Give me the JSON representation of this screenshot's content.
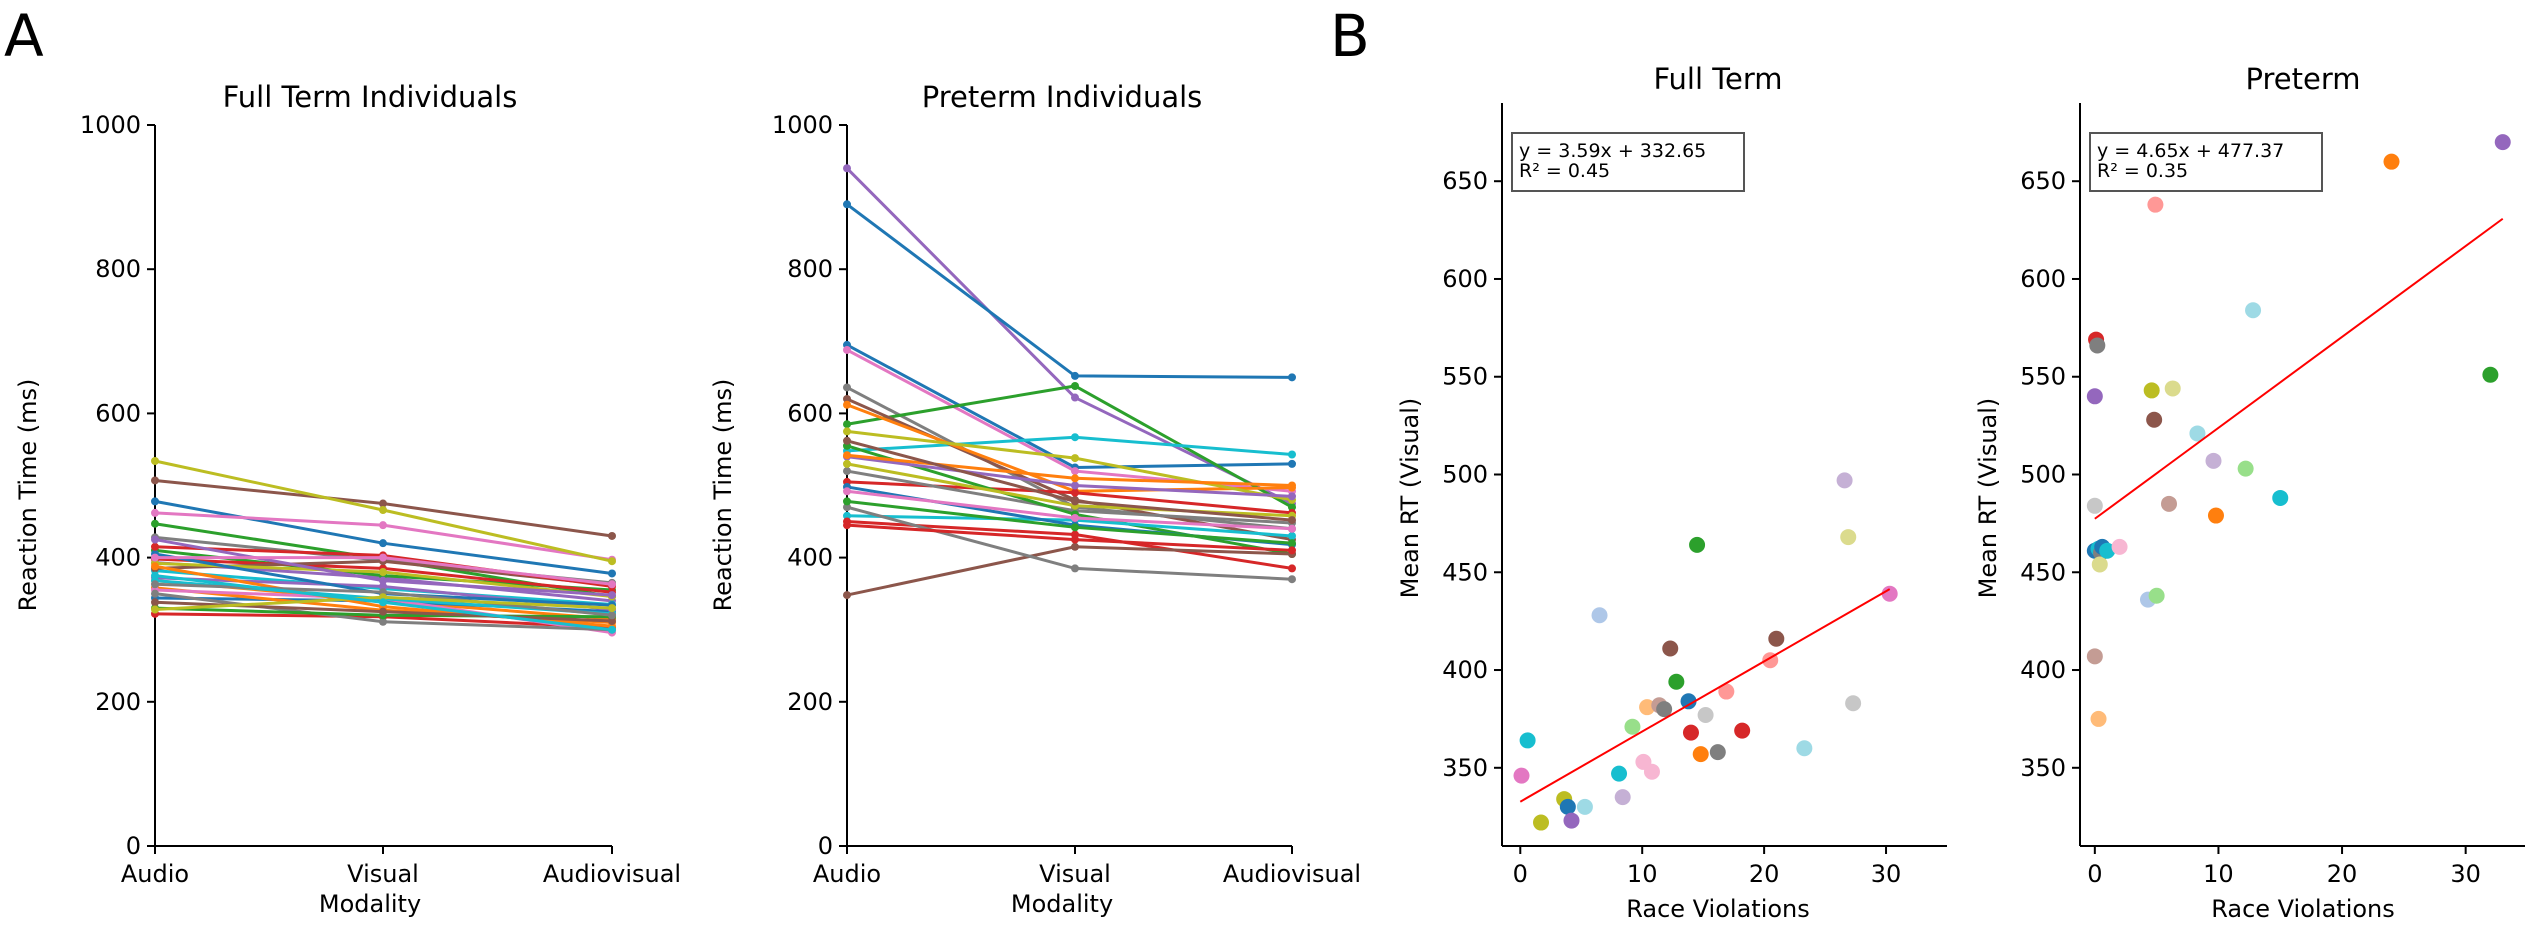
{
  "panel_letters": {
    "a": "A",
    "b": "B"
  },
  "chart_data": [
    {
      "type": "line",
      "title": "Full Term Individuals",
      "xlabel": "Modality",
      "ylabel": "Reaction Time (ms)",
      "categories": [
        "Audio",
        "Visual",
        "Audiovisual"
      ],
      "ylim": [
        0,
        1000
      ],
      "yticks": [
        0,
        200,
        400,
        600,
        800,
        1000
      ],
      "grid": false,
      "series": [
        {
          "color": "#1f77b4",
          "values": [
            478,
            420,
            378
          ]
        },
        {
          "color": "#ff7f0e",
          "values": [
            368,
            340,
            315
          ]
        },
        {
          "color": "#2ca02c",
          "values": [
            447,
            398,
            346
          ]
        },
        {
          "color": "#d62728",
          "values": [
            322,
            318,
            303
          ]
        },
        {
          "color": "#9467bd",
          "values": [
            393,
            372,
            340
          ]
        },
        {
          "color": "#8c564b",
          "values": [
            507,
            475,
            430
          ]
        },
        {
          "color": "#e377c2",
          "values": [
            462,
            445,
            397
          ]
        },
        {
          "color": "#7f7f7f",
          "values": [
            428,
            396,
            365
          ]
        },
        {
          "color": "#bcbd22",
          "values": [
            534,
            466,
            395
          ]
        },
        {
          "color": "#17becf",
          "values": [
            382,
            357,
            335
          ]
        },
        {
          "color": "#1f77b4",
          "values": [
            344,
            340,
            325
          ]
        },
        {
          "color": "#ff7f0e",
          "values": [
            358,
            327,
            310
          ]
        },
        {
          "color": "#2ca02c",
          "values": [
            410,
            375,
            355
          ]
        },
        {
          "color": "#d62728",
          "values": [
            398,
            385,
            352
          ]
        },
        {
          "color": "#9467bd",
          "values": [
            372,
            360,
            328
          ]
        },
        {
          "color": "#8c564b",
          "values": [
            385,
            395,
            362
          ]
        },
        {
          "color": "#e377c2",
          "values": [
            355,
            343,
            296
          ]
        },
        {
          "color": "#7f7f7f",
          "values": [
            350,
            311,
            300
          ]
        },
        {
          "color": "#bcbd22",
          "values": [
            392,
            380,
            346
          ]
        },
        {
          "color": "#17becf",
          "values": [
            368,
            343,
            322
          ]
        },
        {
          "color": "#1f77b4",
          "values": [
            405,
            350,
            334
          ]
        },
        {
          "color": "#ff7f0e",
          "values": [
            388,
            332,
            305
          ]
        },
        {
          "color": "#2ca02c",
          "values": [
            330,
            320,
            318
          ]
        },
        {
          "color": "#d62728",
          "values": [
            415,
            403,
            360
          ]
        },
        {
          "color": "#9467bd",
          "values": [
            425,
            368,
            348
          ]
        },
        {
          "color": "#8c564b",
          "values": [
            338,
            325,
            312
          ]
        },
        {
          "color": "#e377c2",
          "values": [
            400,
            400,
            363
          ]
        },
        {
          "color": "#7f7f7f",
          "values": [
            363,
            352,
            320
          ]
        },
        {
          "color": "#bcbd22",
          "values": [
            328,
            345,
            330
          ]
        },
        {
          "color": "#17becf",
          "values": [
            375,
            338,
            300
          ]
        }
      ]
    },
    {
      "type": "line",
      "title": "Preterm Individuals",
      "xlabel": "Modality",
      "ylabel": "Reaction Time (ms)",
      "categories": [
        "Audio",
        "Visual",
        "Audiovisual"
      ],
      "ylim": [
        0,
        1000
      ],
      "yticks": [
        0,
        200,
        400,
        600,
        800,
        1000
      ],
      "grid": false,
      "series": [
        {
          "color": "#9467bd",
          "values": [
            940,
            622,
            475
          ]
        },
        {
          "color": "#1f77b4",
          "values": [
            890,
            652,
            650
          ]
        },
        {
          "color": "#1f77b4",
          "values": [
            695,
            525,
            530
          ]
        },
        {
          "color": "#e377c2",
          "values": [
            688,
            520,
            492
          ]
        },
        {
          "color": "#7f7f7f",
          "values": [
            636,
            470,
            440
          ]
        },
        {
          "color": "#2ca02c",
          "values": [
            585,
            638,
            470
          ]
        },
        {
          "color": "#17becf",
          "values": [
            548,
            567,
            543
          ]
        },
        {
          "color": "#8c564b",
          "values": [
            620,
            480,
            425
          ]
        },
        {
          "color": "#ff7f0e",
          "values": [
            612,
            492,
            497
          ]
        },
        {
          "color": "#d62728",
          "values": [
            505,
            490,
            462
          ]
        },
        {
          "color": "#bcbd22",
          "values": [
            575,
            538,
            480
          ]
        },
        {
          "color": "#7f7f7f",
          "values": [
            520,
            465,
            448
          ]
        },
        {
          "color": "#2ca02c",
          "values": [
            555,
            460,
            405
          ]
        },
        {
          "color": "#9467bd",
          "values": [
            540,
            500,
            485
          ]
        },
        {
          "color": "#17becf",
          "values": [
            458,
            452,
            430
          ]
        },
        {
          "color": "#d62728",
          "values": [
            450,
            432,
            385
          ]
        },
        {
          "color": "#8c564b",
          "values": [
            348,
            415,
            405
          ]
        },
        {
          "color": "#7f7f7f",
          "values": [
            470,
            385,
            370
          ]
        },
        {
          "color": "#1f77b4",
          "values": [
            498,
            445,
            418
          ]
        },
        {
          "color": "#ff7f0e",
          "values": [
            542,
            510,
            500
          ]
        },
        {
          "color": "#e377c2",
          "values": [
            492,
            455,
            440
          ]
        },
        {
          "color": "#bcbd22",
          "values": [
            530,
            472,
            458
          ]
        },
        {
          "color": "#2ca02c",
          "values": [
            478,
            442,
            420
          ]
        },
        {
          "color": "#d62728",
          "values": [
            445,
            425,
            410
          ]
        },
        {
          "color": "#8c564b",
          "values": [
            562,
            478,
            452
          ]
        }
      ]
    },
    {
      "type": "scatter",
      "title": "Full Term",
      "xlabel": "Race Violations",
      "ylabel": "Mean RT (Visual)",
      "xlim": [
        -1.5,
        35
      ],
      "ylim": [
        310,
        690
      ],
      "xticks": [
        0,
        10,
        20,
        30
      ],
      "yticks": [
        350,
        400,
        450,
        500,
        550,
        600,
        650
      ],
      "annotation": [
        "y = 3.59x + 332.65",
        "R² = 0.45"
      ],
      "fit": {
        "x": [
          0,
          30.3
        ],
        "y": [
          332.65,
          441.4
        ],
        "color": "#ff0000"
      },
      "points": [
        {
          "x": 0.1,
          "y": 346,
          "color": "#e377c2"
        },
        {
          "x": 0.6,
          "y": 364,
          "color": "#17becf"
        },
        {
          "x": 1.7,
          "y": 322,
          "color": "#bcbd22"
        },
        {
          "x": 3.6,
          "y": 334,
          "color": "#bcbd22"
        },
        {
          "x": 3.9,
          "y": 330,
          "color": "#1f77b4"
        },
        {
          "x": 4.2,
          "y": 323,
          "color": "#9467bd"
        },
        {
          "x": 5.3,
          "y": 330,
          "color": "#9edae5"
        },
        {
          "x": 6.5,
          "y": 428,
          "color": "#aec7e8"
        },
        {
          "x": 8.1,
          "y": 347,
          "color": "#17becf"
        },
        {
          "x": 8.4,
          "y": 335,
          "color": "#c5b0d5"
        },
        {
          "x": 9.2,
          "y": 371,
          "color": "#98df8a"
        },
        {
          "x": 10.1,
          "y": 353,
          "color": "#f7b6d2"
        },
        {
          "x": 10.4,
          "y": 381,
          "color": "#ffbb78"
        },
        {
          "x": 10.8,
          "y": 348,
          "color": "#f7b6d2"
        },
        {
          "x": 11.4,
          "y": 382,
          "color": "#c49c94"
        },
        {
          "x": 11.8,
          "y": 380,
          "color": "#7f7f7f"
        },
        {
          "x": 12.3,
          "y": 411,
          "color": "#8c564b"
        },
        {
          "x": 12.8,
          "y": 394,
          "color": "#2ca02c"
        },
        {
          "x": 13.8,
          "y": 384,
          "color": "#1f77b4"
        },
        {
          "x": 14.0,
          "y": 368,
          "color": "#d62728"
        },
        {
          "x": 14.5,
          "y": 464,
          "color": "#2ca02c"
        },
        {
          "x": 14.8,
          "y": 357,
          "color": "#ff7f0e"
        },
        {
          "x": 15.2,
          "y": 377,
          "color": "#c7c7c7"
        },
        {
          "x": 16.2,
          "y": 358,
          "color": "#7f7f7f"
        },
        {
          "x": 16.9,
          "y": 389,
          "color": "#ff9896"
        },
        {
          "x": 18.2,
          "y": 369,
          "color": "#d62728"
        },
        {
          "x": 20.5,
          "y": 405,
          "color": "#ff9896"
        },
        {
          "x": 21.0,
          "y": 416,
          "color": "#8c564b"
        },
        {
          "x": 23.3,
          "y": 360,
          "color": "#9edae5"
        },
        {
          "x": 26.6,
          "y": 497,
          "color": "#c5b0d5"
        },
        {
          "x": 26.9,
          "y": 468,
          "color": "#dbdb8d"
        },
        {
          "x": 27.3,
          "y": 383,
          "color": "#c7c7c7"
        },
        {
          "x": 30.3,
          "y": 439,
          "color": "#e377c2"
        }
      ]
    },
    {
      "type": "scatter",
      "title": "Preterm",
      "xlabel": "Race Violations",
      "ylabel": "Mean RT (Visual)",
      "xlim": [
        -1.2,
        34.8
      ],
      "ylim": [
        310,
        690
      ],
      "xticks": [
        0,
        10,
        20,
        30
      ],
      "yticks": [
        350,
        400,
        450,
        500,
        550,
        600,
        650
      ],
      "annotation": [
        "y = 4.65x + 477.37",
        "R² = 0.35"
      ],
      "fit": {
        "x": [
          0,
          33
        ],
        "y": [
          477.37,
          630.8
        ],
        "color": "#ff0000"
      },
      "points": [
        {
          "x": 0.1,
          "y": 569,
          "color": "#d62728"
        },
        {
          "x": 0.2,
          "y": 566,
          "color": "#7f7f7f"
        },
        {
          "x": 0.0,
          "y": 540,
          "color": "#9467bd"
        },
        {
          "x": 0.0,
          "y": 484,
          "color": "#c7c7c7"
        },
        {
          "x": 0.0,
          "y": 461,
          "color": "#1f77b4"
        },
        {
          "x": 0.3,
          "y": 462,
          "color": "#17becf"
        },
        {
          "x": 0.5,
          "y": 460,
          "color": "#7f7f7f"
        },
        {
          "x": 0.6,
          "y": 463,
          "color": "#1f77b4"
        },
        {
          "x": 0.4,
          "y": 454,
          "color": "#dbdb8d"
        },
        {
          "x": 1.0,
          "y": 461,
          "color": "#17becf"
        },
        {
          "x": 2.0,
          "y": 463,
          "color": "#f7b6d2"
        },
        {
          "x": 0.0,
          "y": 407,
          "color": "#c49c94"
        },
        {
          "x": 0.3,
          "y": 375,
          "color": "#ffbb78"
        },
        {
          "x": 4.3,
          "y": 436,
          "color": "#aec7e8"
        },
        {
          "x": 4.9,
          "y": 638,
          "color": "#ff9896"
        },
        {
          "x": 4.6,
          "y": 543,
          "color": "#bcbd22"
        },
        {
          "x": 5.0,
          "y": 438,
          "color": "#98df8a"
        },
        {
          "x": 4.8,
          "y": 528,
          "color": "#8c564b"
        },
        {
          "x": 6.3,
          "y": 544,
          "color": "#dbdb8d"
        },
        {
          "x": 6.0,
          "y": 485,
          "color": "#c49c94"
        },
        {
          "x": 8.3,
          "y": 521,
          "color": "#9edae5"
        },
        {
          "x": 9.6,
          "y": 507,
          "color": "#c5b0d5"
        },
        {
          "x": 9.8,
          "y": 479,
          "color": "#ff7f0e"
        },
        {
          "x": 12.2,
          "y": 503,
          "color": "#98df8a"
        },
        {
          "x": 12.8,
          "y": 584,
          "color": "#9edae5"
        },
        {
          "x": 15.0,
          "y": 488,
          "color": "#17becf"
        },
        {
          "x": 24.0,
          "y": 660,
          "color": "#ff7f0e"
        },
        {
          "x": 32.0,
          "y": 551,
          "color": "#2ca02c"
        },
        {
          "x": 33.0,
          "y": 670,
          "color": "#9467bd"
        }
      ]
    }
  ]
}
